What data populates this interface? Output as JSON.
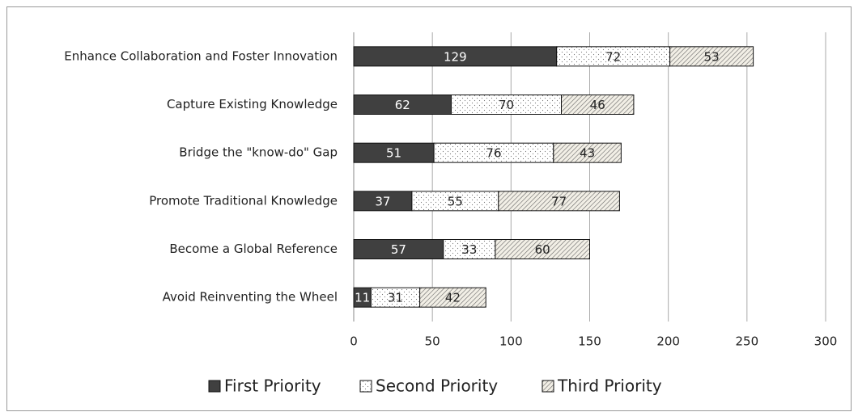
{
  "chart_data": {
    "type": "stacked_barh",
    "categories": [
      "Enhance Collaboration and Foster Innovation",
      "Capture Existing Knowledge",
      "Bridge the \"know-do\" Gap",
      "Promote Traditional Knowledge",
      "Become a Global Reference",
      "Avoid Reinventing the Wheel"
    ],
    "series": [
      {
        "name": "First Priority",
        "color": "#404040",
        "values": [
          129,
          62,
          51,
          37,
          57,
          11
        ]
      },
      {
        "name": "Second Priority",
        "color": "#ffffff",
        "values": [
          72,
          70,
          76,
          55,
          33,
          31
        ]
      },
      {
        "name": "Third Priority",
        "color": "#f2efe6",
        "values": [
          53,
          46,
          43,
          77,
          60,
          42
        ]
      }
    ],
    "xlim": [
      0,
      300
    ],
    "xticks": [
      0,
      50,
      100,
      150,
      200,
      250,
      300
    ],
    "grid": true,
    "legend": "bottom"
  }
}
